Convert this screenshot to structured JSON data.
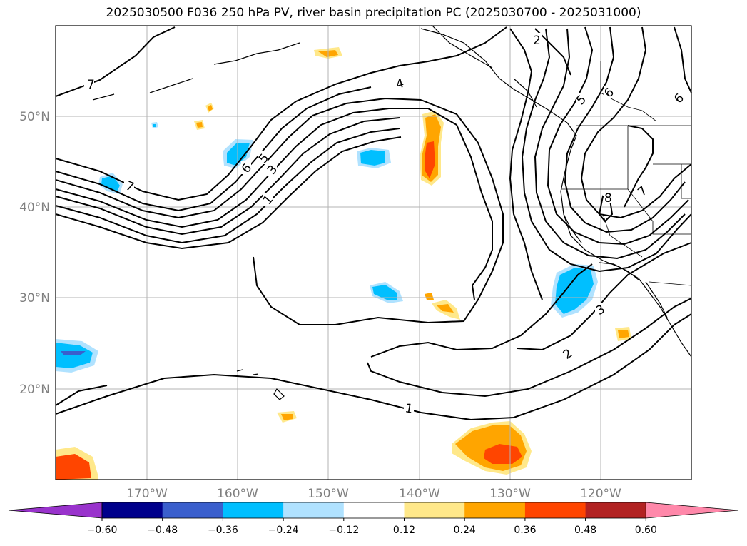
{
  "title": "2025030500 F036 250 hPa PV, river basin precipitation PC (2025030700 - 2025031000)",
  "map": {
    "lon_labels": [
      "170°W",
      "160°W",
      "150°W",
      "140°W",
      "130°W",
      "120°W"
    ],
    "lat_labels": [
      "50°N",
      "40°N",
      "30°N",
      "20°N"
    ],
    "contour_labels": [
      "7",
      "7",
      "6",
      "5",
      "4",
      "3",
      "2",
      "1",
      "1",
      "2",
      "3",
      "5",
      "6",
      "6",
      "7",
      "8"
    ]
  },
  "colorbar": {
    "ticks": [
      "−0.60",
      "−0.48",
      "−0.36",
      "−0.24",
      "−0.12",
      "0.12",
      "0.24",
      "0.36",
      "0.48",
      "0.60"
    ],
    "colors": [
      "#9933cc",
      "#00008b",
      "#3a5fcd",
      "#00bfff",
      "#b0e2ff",
      "#ffffff",
      "#ffe88a",
      "#ffa500",
      "#ff4500",
      "#b22222",
      "#ff88aa"
    ]
  }
}
